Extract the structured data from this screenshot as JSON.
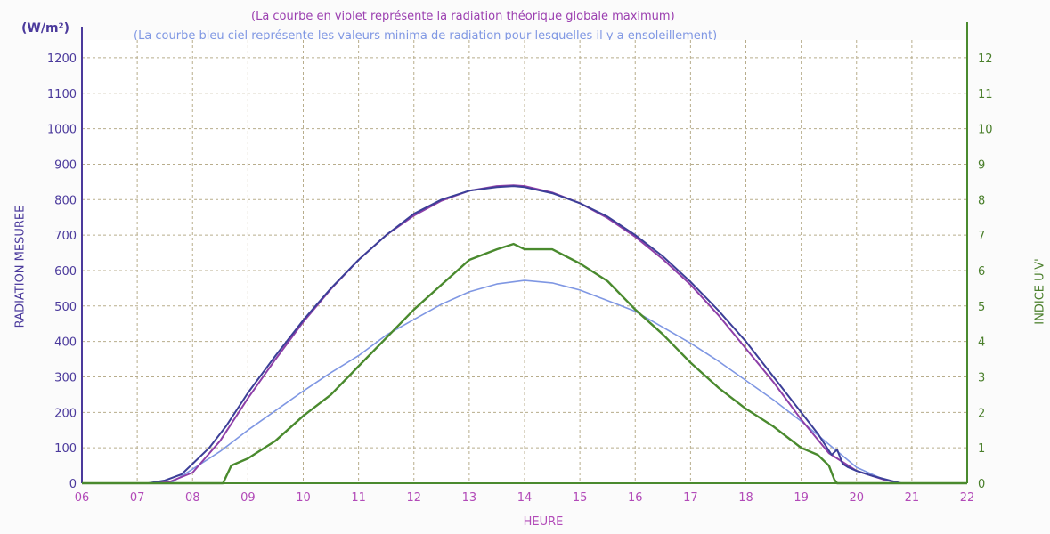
{
  "chart_data": {
    "type": "line",
    "notes": [
      "(La courbe en violet représente la radiation théorique globale maximum)",
      "(La courbe bleu ciel représente les valeurs minima de radiation pour lesquelles il y a ensoleillement)"
    ],
    "unit_label": "(W/m²)",
    "xlabel": "HEURE",
    "ylabel": "RADIATION MESUREE",
    "y2label": "INDICE U'V'",
    "x_ticks": [
      "06",
      "07",
      "08",
      "09",
      "10",
      "11",
      "12",
      "13",
      "14",
      "15",
      "16",
      "17",
      "18",
      "19",
      "20",
      "21",
      "22"
    ],
    "y_ticks": [
      "0",
      "100",
      "200",
      "300",
      "400",
      "500",
      "600",
      "700",
      "800",
      "900",
      "1000",
      "1100",
      "1200"
    ],
    "y2_ticks": [
      "0",
      "1",
      "2",
      "3",
      "4",
      "5",
      "6",
      "7",
      "8",
      "9",
      "10",
      "11",
      "12"
    ],
    "xlim": [
      6,
      22
    ],
    "ylim": [
      0,
      1250
    ],
    "y2lim": [
      0,
      12.5
    ],
    "grid": true,
    "colors": {
      "violet": "#8e3fa8",
      "measured": "#3c3f98",
      "light_blue": "#7f97e3",
      "uv": "#4a8a2e",
      "grid": "#b8ad8c",
      "left_axis_text": "#4b3a9c",
      "right_axis_text": "#4a7f2b",
      "x_axis_text": "#b24ab8"
    },
    "series": [
      {
        "key": "theoretical",
        "axis": "left",
        "x": [
          6,
          7.3,
          7.6,
          8.0,
          8.5,
          9.0,
          9.5,
          10.0,
          10.5,
          11.0,
          11.5,
          12.0,
          12.5,
          13.0,
          13.5,
          13.8,
          14.0,
          14.5,
          15.0,
          15.5,
          16.0,
          16.5,
          17.0,
          17.5,
          18.0,
          18.5,
          19.0,
          19.5,
          20.0,
          20.5,
          20.8,
          22
        ],
        "y": [
          0,
          0,
          5,
          30,
          120,
          240,
          350,
          455,
          548,
          630,
          700,
          755,
          797,
          825,
          838,
          840,
          838,
          820,
          790,
          748,
          695,
          632,
          560,
          475,
          380,
          285,
          180,
          85,
          35,
          10,
          0,
          0
        ]
      },
      {
        "key": "measured",
        "axis": "left",
        "x": [
          6,
          7.2,
          7.5,
          7.8,
          8.0,
          8.3,
          8.6,
          9.0,
          9.5,
          10.0,
          10.5,
          11.0,
          11.5,
          12.0,
          12.5,
          13.0,
          13.5,
          13.8,
          14.0,
          14.5,
          15.0,
          15.5,
          16.0,
          16.5,
          17.0,
          17.5,
          18.0,
          18.5,
          19.0,
          19.3,
          19.55,
          19.65,
          19.75,
          19.85,
          20.0,
          20.3,
          20.6,
          20.8,
          22
        ],
        "y": [
          0,
          0,
          8,
          25,
          55,
          100,
          160,
          255,
          360,
          460,
          550,
          630,
          700,
          760,
          800,
          825,
          835,
          838,
          835,
          818,
          790,
          752,
          700,
          640,
          568,
          488,
          400,
          300,
          200,
          140,
          80,
          95,
          55,
          45,
          35,
          20,
          8,
          0,
          0
        ]
      },
      {
        "key": "min_sun",
        "axis": "left",
        "x": [
          6,
          7.6,
          8.0,
          8.5,
          9.0,
          9.5,
          10.0,
          10.5,
          11.0,
          11.5,
          12.0,
          12.5,
          13.0,
          13.5,
          14.0,
          14.5,
          15.0,
          15.5,
          16.0,
          16.5,
          17.0,
          17.5,
          18.0,
          18.5,
          19.0,
          19.5,
          20.0,
          20.5,
          20.8,
          22
        ],
        "y": [
          0,
          0,
          40,
          90,
          150,
          205,
          260,
          312,
          360,
          418,
          462,
          505,
          540,
          562,
          572,
          565,
          545,
          515,
          485,
          440,
          395,
          345,
          290,
          235,
          175,
          110,
          45,
          10,
          0,
          0
        ]
      },
      {
        "key": "uv_index",
        "axis": "right",
        "x": [
          6,
          8.55,
          8.7,
          9.0,
          9.5,
          10.0,
          10.5,
          11.0,
          11.5,
          12.0,
          12.5,
          13.0,
          13.5,
          13.8,
          14.0,
          14.5,
          15.0,
          15.5,
          16.0,
          16.5,
          17.0,
          17.5,
          18.0,
          18.5,
          19.0,
          19.3,
          19.5,
          19.6,
          19.65,
          22
        ],
        "y": [
          0,
          0,
          0.5,
          0.7,
          1.2,
          1.9,
          2.5,
          3.3,
          4.1,
          4.9,
          5.6,
          6.3,
          6.6,
          6.75,
          6.6,
          6.6,
          6.2,
          5.7,
          4.9,
          4.2,
          3.4,
          2.7,
          2.1,
          1.6,
          1.0,
          0.8,
          0.5,
          0.1,
          0,
          0
        ]
      }
    ]
  }
}
